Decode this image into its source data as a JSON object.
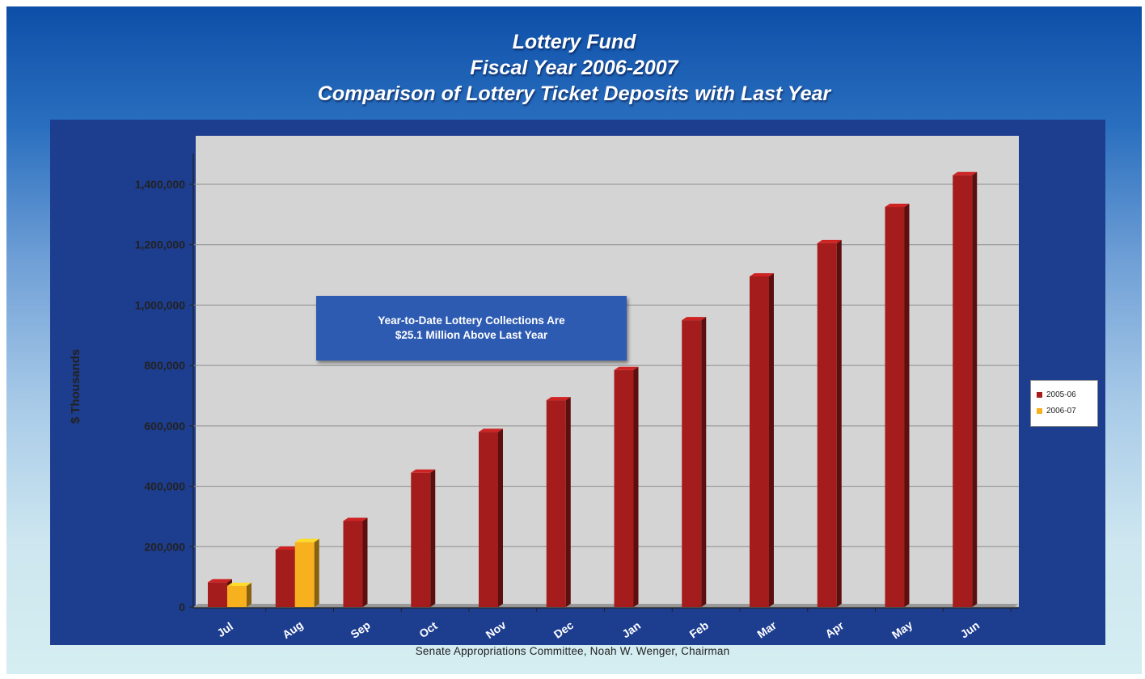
{
  "title": {
    "line1": "Lottery Fund",
    "line2": "Fiscal Year 2006-2007",
    "line3": "Comparison of Lottery Ticket Deposits with Last Year"
  },
  "annotation": {
    "line1": "Year-to-Date Lottery Collections Are",
    "line2": "$25.1 Million Above Last Year"
  },
  "footer": "Senate Appropriations Committee, Noah W. Wenger, Chairman",
  "colors": {
    "series_2005_06": "#a51c1c",
    "series_2006_07": "#f7b01e",
    "plot_background": "#d4d4d4",
    "panel_background": "#1d3d8f"
  },
  "chart_data": {
    "type": "bar",
    "title": "Lottery Fund Fiscal Year 2006-2007 Comparison of Lottery Ticket Deposits with Last Year",
    "xlabel": "",
    "ylabel": "$ Thousands",
    "ylim": [
      0,
      1400000
    ],
    "yticks": [
      0,
      200000,
      400000,
      600000,
      800000,
      1000000,
      1200000,
      1400000
    ],
    "ytick_labels": [
      "0",
      "200,000",
      "400,000",
      "600,000",
      "800,000",
      "1,000,000",
      "1,200,000",
      "1,400,000"
    ],
    "grid": true,
    "legend_position": "right",
    "categories": [
      "Jul",
      "Aug",
      "Sep",
      "Oct",
      "Nov",
      "Dec",
      "Jan",
      "Feb",
      "Mar",
      "Apr",
      "May",
      "Jun"
    ],
    "series": [
      {
        "name": "2005-06",
        "values": [
          82000,
          190000,
          285000,
          445000,
          580000,
          685000,
          785000,
          950000,
          1095000,
          1205000,
          1325000,
          1430000
        ]
      },
      {
        "name": "2006-07",
        "values": [
          70000,
          215000,
          null,
          null,
          null,
          null,
          null,
          null,
          null,
          null,
          null,
          null
        ]
      }
    ]
  }
}
